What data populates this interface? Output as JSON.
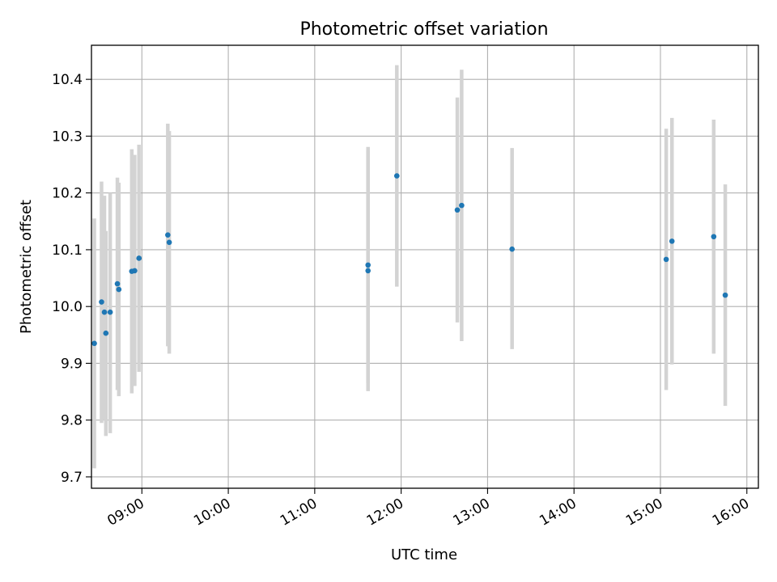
{
  "chart_data": {
    "type": "scatter",
    "title": "Photometric offset variation",
    "xlabel": "UTC time",
    "ylabel": "Photometric offset",
    "x_ticks": [
      "09:00",
      "10:00",
      "11:00",
      "12:00",
      "13:00",
      "14:00",
      "15:00",
      "16:00"
    ],
    "y_ticks": [
      "9.7",
      "9.8",
      "9.9",
      "10.0",
      "10.1",
      "10.2",
      "10.3",
      "10.4"
    ],
    "xlim": [
      "08:25",
      "16:08"
    ],
    "ylim": [
      9.68,
      10.46
    ],
    "grid": true,
    "colors": {
      "marker": "#1f77b4",
      "errorbar": "#d3d3d3",
      "grid": "#b0b0b0"
    },
    "points": [
      {
        "x": "08:27",
        "y": 9.935,
        "yerr_low": 9.715,
        "yerr_high": 10.155
      },
      {
        "x": "08:32",
        "y": 10.008,
        "yerr_low": 9.795,
        "yerr_high": 10.22
      },
      {
        "x": "08:34",
        "y": 9.99,
        "yerr_low": 9.8,
        "yerr_high": 10.195
      },
      {
        "x": "08:35",
        "y": 9.953,
        "yerr_low": 9.772,
        "yerr_high": 10.133
      },
      {
        "x": "08:38",
        "y": 9.99,
        "yerr_low": 9.777,
        "yerr_high": 10.2
      },
      {
        "x": "08:43",
        "y": 10.04,
        "yerr_low": 9.853,
        "yerr_high": 10.227
      },
      {
        "x": "08:44",
        "y": 10.03,
        "yerr_low": 9.842,
        "yerr_high": 10.218
      },
      {
        "x": "08:53",
        "y": 10.062,
        "yerr_low": 9.847,
        "yerr_high": 10.277
      },
      {
        "x": "08:55",
        "y": 10.063,
        "yerr_low": 9.86,
        "yerr_high": 10.267
      },
      {
        "x": "08:58",
        "y": 10.085,
        "yerr_low": 9.885,
        "yerr_high": 10.285
      },
      {
        "x": "09:18",
        "y": 10.126,
        "yerr_low": 9.93,
        "yerr_high": 10.322
      },
      {
        "x": "09:19",
        "y": 10.113,
        "yerr_low": 9.917,
        "yerr_high": 10.309
      },
      {
        "x": "11:37",
        "y": 10.073,
        "yerr_low": 9.865,
        "yerr_high": 10.281
      },
      {
        "x": "11:37",
        "y": 10.063,
        "yerr_low": 9.851,
        "yerr_high": 10.275
      },
      {
        "x": "11:57",
        "y": 10.23,
        "yerr_low": 10.035,
        "yerr_high": 10.425
      },
      {
        "x": "12:39",
        "y": 10.17,
        "yerr_low": 9.972,
        "yerr_high": 10.368
      },
      {
        "x": "12:42",
        "y": 10.178,
        "yerr_low": 9.939,
        "yerr_high": 10.417
      },
      {
        "x": "13:17",
        "y": 10.101,
        "yerr_low": 9.925,
        "yerr_high": 10.279
      },
      {
        "x": "15:04",
        "y": 10.083,
        "yerr_low": 9.853,
        "yerr_high": 10.313
      },
      {
        "x": "15:08",
        "y": 10.115,
        "yerr_low": 9.898,
        "yerr_high": 10.332
      },
      {
        "x": "15:37",
        "y": 10.123,
        "yerr_low": 9.917,
        "yerr_high": 10.329
      },
      {
        "x": "15:45",
        "y": 10.02,
        "yerr_low": 9.825,
        "yerr_high": 10.215
      }
    ]
  }
}
